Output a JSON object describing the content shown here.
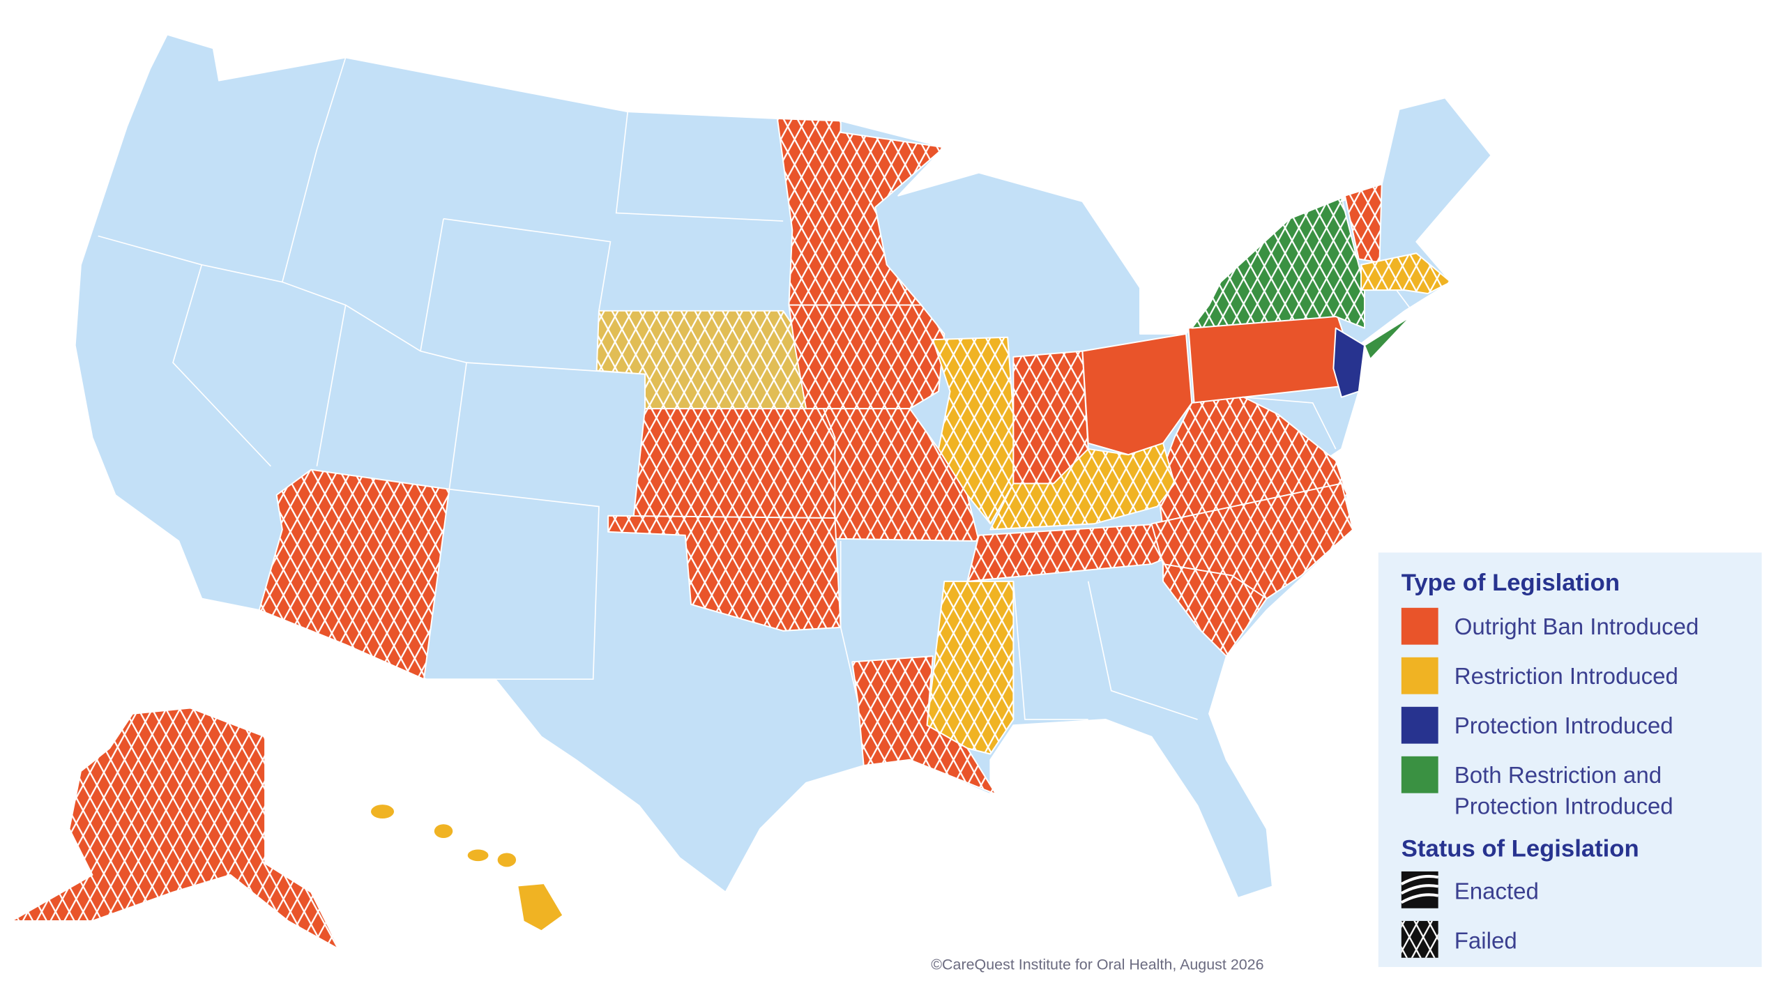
{
  "legend": {
    "type_title": "Type of Legislation",
    "types": [
      {
        "color": "#e9542a",
        "lines": [
          "Outright Ban Introduced"
        ]
      },
      {
        "color": "#f0b323",
        "lines": [
          "Restriction Introduced"
        ]
      },
      {
        "color": "#27338f",
        "lines": [
          "Protection Introduced"
        ]
      },
      {
        "color": "#3a9142",
        "lines": [
          "Both Restriction and",
          "Protection Introduced"
        ]
      }
    ],
    "status_title": "Status of Legislation",
    "statuses": [
      "Enacted",
      "Failed"
    ]
  },
  "credit": "©CareQuest Institute for Oral Health, August 2026"
}
